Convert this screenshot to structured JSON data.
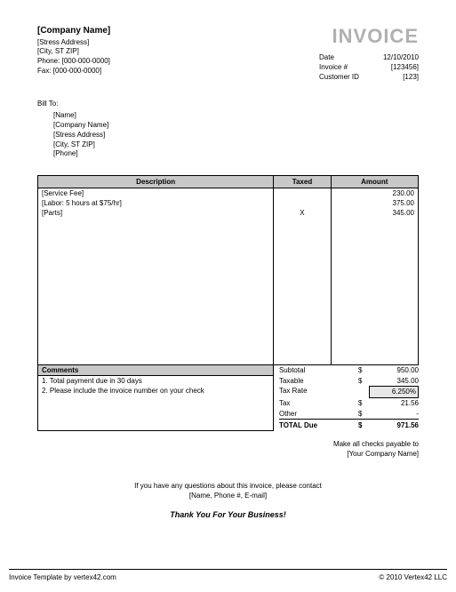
{
  "company": {
    "name": "[Company Name]",
    "address": "[Stress Address]",
    "city": "[City, ST  ZIP]",
    "phone_label": "Phone:",
    "phone": "[000-000-0000]",
    "fax_label": "Fax:",
    "fax": "[000-000-0000]"
  },
  "title": "INVOICE",
  "meta": {
    "date_label": "Date",
    "date": "12/10/2010",
    "inv_label": "Invoice #",
    "inv": "[123456]",
    "cust_label": "Customer ID",
    "cust": "[123]"
  },
  "billto": {
    "title": "Bill To:",
    "name": "[Name]",
    "company": "[Company Name]",
    "address": "[Stress Address]",
    "city": "[City, ST  ZIP]",
    "phone": "[Phone]"
  },
  "columns": {
    "desc": "Description",
    "taxed": "Taxed",
    "amount": "Amount"
  },
  "items": [
    {
      "desc": "[Service Fee]",
      "taxed": "",
      "amount": "230.00"
    },
    {
      "desc": "[Labor: 5 hours at $75/hr]",
      "taxed": "",
      "amount": "375.00"
    },
    {
      "desc": "[Parts]",
      "taxed": "X",
      "amount": "345.00"
    }
  ],
  "comments": {
    "header": "Comments",
    "line1": "1. Total payment due in 30 days",
    "line2": "2. Please include the invoice number on your check"
  },
  "totals": {
    "subtotal_label": "Subtotal",
    "subtotal": "950.00",
    "taxable_label": "Taxable",
    "taxable": "345.00",
    "taxrate_label": "Tax Rate",
    "taxrate": "6.250%",
    "tax_label": "Tax",
    "tax": "21.56",
    "other_label": "Other",
    "other": "-",
    "total_label": "TOTAL Due",
    "total": "971.56",
    "currency": "$"
  },
  "payable": {
    "line1": "Make all checks payable to",
    "line2": "[Your Company Name]"
  },
  "contact": {
    "line1": "If you have any questions about this invoice, please contact",
    "line2": "[Name, Phone #, E-mail]"
  },
  "thanks": "Thank You For Your Business!",
  "footer": {
    "left": "Invoice Template by vertex42.com",
    "right": "© 2010 Vertex42 LLC"
  },
  "style": {
    "header_bg": "#c8c8c8",
    "title_color": "#b0b0b0",
    "border_color": "#000000",
    "taxrate_bg": "#e8e8e8"
  }
}
